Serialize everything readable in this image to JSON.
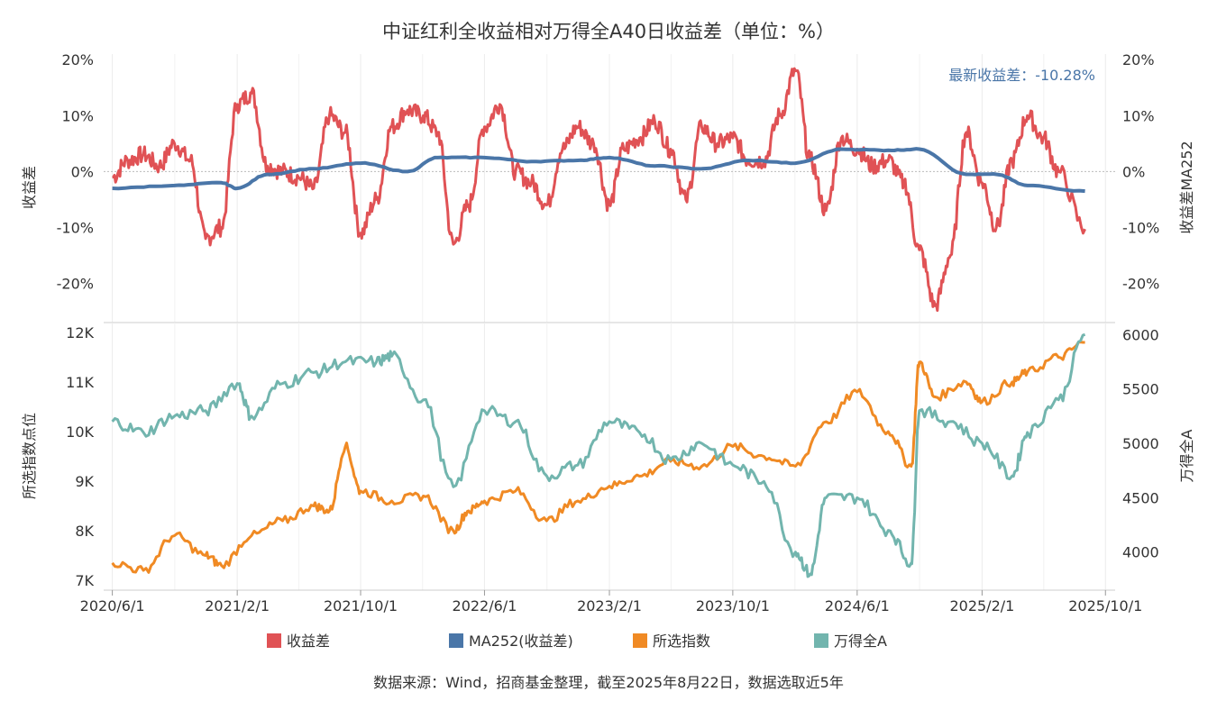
{
  "title": "中证红利全收益相对万得全A40日收益差（单位：%）",
  "source": "数据来源：Wind，招商基金整理，截至2025年8月22日，数据选取近5年",
  "annotation": "最新收益差：-10.28%",
  "colors": {
    "spread": "#e05255",
    "ma252": "#4a76a8",
    "selected": "#f08a24",
    "wind_all_a": "#72b5ae",
    "annotation": "#4a76a8"
  },
  "legend": [
    {
      "key": "spread",
      "label": "收益差"
    },
    {
      "key": "ma252",
      "label": "MA252(收益差)"
    },
    {
      "key": "selected",
      "label": "所选指数"
    },
    {
      "key": "wind_all_a",
      "label": "万得全A"
    }
  ],
  "chart_data": [
    {
      "type": "line",
      "ylabel": "收益差",
      "y2label": "收益差MA252",
      "ylim": [
        -27,
        21
      ],
      "yticks": [
        20,
        10,
        0,
        -10,
        -20
      ],
      "ytick_labels": [
        "20%",
        "10%",
        "0%",
        "-10%",
        "-20%"
      ],
      "y2ticks": [
        20,
        10,
        0,
        -10,
        -20
      ],
      "y2tick_labels": [
        "20%",
        "10%",
        "0%",
        "-10%",
        "-20%"
      ],
      "series": [
        {
          "name": "收益差",
          "key": "spread",
          "x": [
            "2020-06-01",
            "2020-07-01",
            "2020-08-01",
            "2020-09-01",
            "2020-10-01",
            "2020-11-01",
            "2020-12-01",
            "2021-01-01",
            "2021-02-01",
            "2021-03-01",
            "2021-04-01",
            "2021-05-01",
            "2021-06-01",
            "2021-07-01",
            "2021-08-01",
            "2021-09-01",
            "2021-10-01",
            "2021-11-01",
            "2021-12-01",
            "2022-01-01",
            "2022-02-01",
            "2022-03-01",
            "2022-04-01",
            "2022-05-01",
            "2022-06-01",
            "2022-07-01",
            "2022-08-01",
            "2022-09-01",
            "2022-10-01",
            "2022-11-01",
            "2022-12-01",
            "2023-01-01",
            "2023-02-01",
            "2023-03-01",
            "2023-04-01",
            "2023-05-01",
            "2023-06-01",
            "2023-07-01",
            "2023-08-01",
            "2023-09-01",
            "2023-10-01",
            "2023-11-01",
            "2023-12-01",
            "2024-01-01",
            "2024-02-01",
            "2024-03-01",
            "2024-04-01",
            "2024-05-01",
            "2024-06-01",
            "2024-07-01",
            "2024-08-01",
            "2024-09-01",
            "2024-10-01",
            "2024-11-01",
            "2024-12-01",
            "2025-01-01",
            "2025-02-01",
            "2025-03-01",
            "2025-04-01",
            "2025-05-01",
            "2025-06-01",
            "2025-07-01",
            "2025-08-22"
          ],
          "values": [
            -1,
            2,
            3,
            1,
            5,
            2,
            -12,
            -10,
            12,
            14,
            1,
            0,
            -1,
            -3,
            10,
            7,
            -11,
            -5,
            8,
            11,
            10,
            7,
            -13,
            -6,
            8,
            12,
            0,
            -2,
            -6,
            4,
            8,
            5,
            -6,
            4,
            6,
            9,
            4,
            -5,
            8,
            5,
            6,
            2,
            2,
            10,
            18,
            2,
            -7,
            6,
            4,
            1,
            2,
            -2,
            -14,
            -24,
            -15,
            7,
            -2,
            -10,
            2,
            10,
            6,
            0,
            -10.28
          ]
        },
        {
          "name": "MA252(收益差)",
          "key": "ma252",
          "x": [
            "2020-06-01",
            "2020-10-01",
            "2021-01-01",
            "2021-02-01",
            "2021-04-01",
            "2021-07-01",
            "2021-10-01",
            "2022-01-01",
            "2022-03-01",
            "2022-06-01",
            "2022-09-01",
            "2022-12-01",
            "2023-02-01",
            "2023-05-01",
            "2023-08-01",
            "2023-11-01",
            "2024-02-01",
            "2024-05-01",
            "2024-08-01",
            "2024-10-01",
            "2025-01-01",
            "2025-03-01",
            "2025-05-01",
            "2025-08-22"
          ],
          "values": [
            -3,
            -2.5,
            -2,
            -3,
            -0.5,
            0.5,
            1.5,
            0,
            2.5,
            2.5,
            1.8,
            2,
            2.5,
            1,
            0.5,
            2,
            1.5,
            4,
            3.8,
            4,
            -0.5,
            -0.5,
            -2.5,
            -3.5
          ]
        }
      ]
    },
    {
      "type": "line",
      "ylabel": "所选指数点位",
      "y2label": "万得全A",
      "ylim": [
        6800,
        12200
      ],
      "y2lim": [
        3650,
        6110
      ],
      "yticks": [
        12000,
        11000,
        10000,
        9000,
        8000,
        7000
      ],
      "ytick_labels": [
        "12K",
        "11K",
        "10K",
        "9K",
        "8K",
        "7K"
      ],
      "y2ticks": [
        6000,
        5500,
        5000,
        4500,
        4000
      ],
      "y2tick_labels": [
        "6000",
        "5500",
        "5000",
        "4500",
        "4000"
      ],
      "xticks": [
        "2020-06-01",
        "2021-02-01",
        "2021-10-01",
        "2022-06-01",
        "2023-02-01",
        "2023-10-01",
        "2024-06-01",
        "2025-02-01",
        "2025-10-01"
      ],
      "xtick_labels": [
        "2020/6/1",
        "2021/2/1",
        "2021/10/1",
        "2022/6/1",
        "2023/2/1",
        "2023/10/1",
        "2024/6/1",
        "2025/2/1",
        "2025/10/1"
      ],
      "series": [
        {
          "name": "所选指数",
          "key": "selected",
          "axis": "left",
          "x": [
            "2020-06-01",
            "2020-08-01",
            "2020-10-01",
            "2020-12-01",
            "2021-01-01",
            "2021-03-01",
            "2021-05-01",
            "2021-07-01",
            "2021-08-01",
            "2021-09-01",
            "2021-10-01",
            "2021-12-01",
            "2022-02-01",
            "2022-04-01",
            "2022-05-01",
            "2022-06-01",
            "2022-08-01",
            "2022-10-01",
            "2022-12-01",
            "2023-02-01",
            "2023-04-01",
            "2023-06-01",
            "2023-08-01",
            "2023-10-01",
            "2023-12-01",
            "2024-02-01",
            "2024-04-01",
            "2024-06-01",
            "2024-08-01",
            "2024-09-15",
            "2024-10-01",
            "2024-11-01",
            "2025-01-01",
            "2025-02-01",
            "2025-04-01",
            "2025-05-01",
            "2025-07-01",
            "2025-08-22"
          ],
          "values": [
            7350,
            7200,
            7900,
            7500,
            7300,
            7900,
            8200,
            8500,
            8400,
            9700,
            8800,
            8600,
            8700,
            8000,
            8400,
            8600,
            8800,
            8200,
            8600,
            8900,
            9100,
            9400,
            9300,
            9700,
            9500,
            9300,
            10200,
            10800,
            10000,
            9300,
            11400,
            10700,
            11000,
            10600,
            11000,
            11200,
            11500,
            11800
          ]
        },
        {
          "name": "万得全A",
          "key": "wind_all_a",
          "axis": "right",
          "x": [
            "2020-06-01",
            "2020-08-01",
            "2020-10-01",
            "2020-12-01",
            "2021-02-01",
            "2021-03-01",
            "2021-05-01",
            "2021-07-01",
            "2021-09-01",
            "2021-11-01",
            "2021-12-01",
            "2022-02-01",
            "2022-04-01",
            "2022-06-01",
            "2022-08-01",
            "2022-10-01",
            "2022-12-01",
            "2023-02-01",
            "2023-04-01",
            "2023-06-01",
            "2023-08-01",
            "2023-10-01",
            "2023-12-01",
            "2024-02-01",
            "2024-03-01",
            "2024-04-01",
            "2024-06-01",
            "2024-08-01",
            "2024-09-15",
            "2024-10-01",
            "2024-12-01",
            "2025-02-01",
            "2025-04-01",
            "2025-05-01",
            "2025-07-01",
            "2025-08-22"
          ],
          "values": [
            5200,
            5100,
            5250,
            5300,
            5550,
            5250,
            5550,
            5650,
            5750,
            5750,
            5800,
            5400,
            4600,
            5300,
            5200,
            4700,
            4800,
            5200,
            5100,
            4850,
            5000,
            4800,
            4650,
            4000,
            3800,
            4500,
            4500,
            4200,
            3900,
            5300,
            5200,
            5000,
            4700,
            5100,
            5400,
            6000
          ]
        }
      ]
    }
  ]
}
